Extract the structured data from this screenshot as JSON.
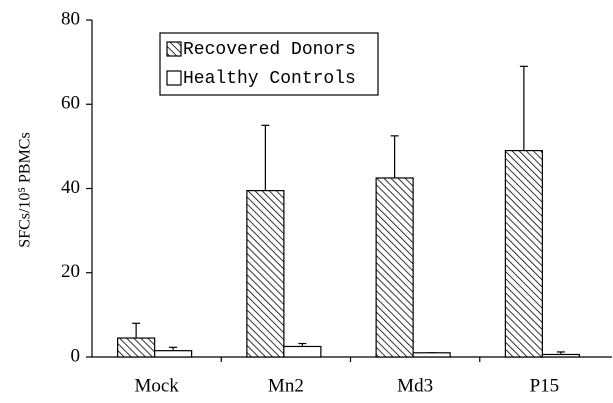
{
  "chart_data": {
    "type": "bar",
    "y_label": "SFCs/10⁵ PBMCs",
    "categories": [
      "Mock",
      "Mn2",
      "Md3",
      "P15"
    ],
    "series": [
      {
        "name": "Recovered Donors",
        "color": "#000000",
        "fill": "hatch",
        "values": [
          4.5,
          39.5,
          42.5,
          49
        ],
        "errors": [
          3.5,
          15.5,
          10,
          20
        ]
      },
      {
        "name": "Healthy Controls",
        "color": "#ffffff",
        "fill": "solid",
        "values": [
          1.5,
          2.5,
          1,
          0.6
        ],
        "errors": [
          0.8,
          0.7,
          0,
          0.6
        ]
      }
    ],
    "ylim": [
      0,
      80
    ],
    "yticks": [
      0,
      20,
      40,
      60,
      80
    ],
    "grid": false,
    "legend": "top-left"
  }
}
